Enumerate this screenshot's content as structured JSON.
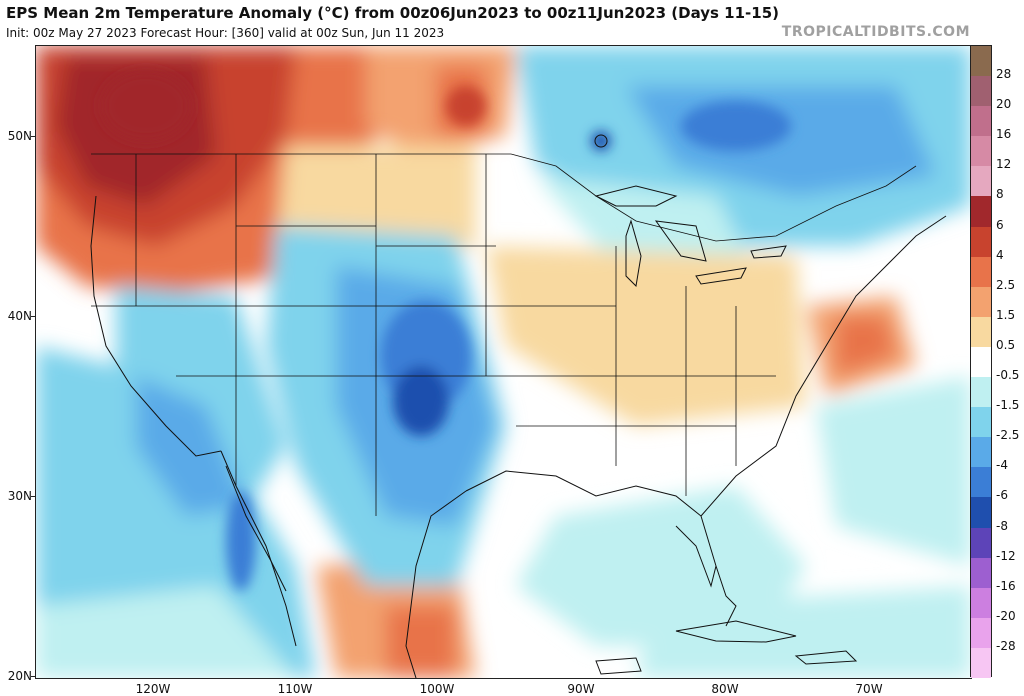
{
  "header": {
    "title": "EPS Mean 2m Temperature Anomaly (°C) from 00z06Jun2023 to 00z11Jun2023 (Days 11-15)",
    "subtitle": "Init: 00z May 27 2023   Forecast Hour: [360]   valid at 00z Sun, Jun 11 2023",
    "credit": "TROPICALTIDBITS.COM"
  },
  "map": {
    "region": "Continental United States",
    "latitude_labels": [
      "50N",
      "40N",
      "30N",
      "20N"
    ],
    "longitude_labels": [
      "120W",
      "110W",
      "100W",
      "90W",
      "80W",
      "70W"
    ]
  },
  "colorbar": {
    "labels": [
      "28",
      "20",
      "16",
      "12",
      "8",
      "6",
      "4",
      "2.5",
      "1.5",
      "0.5",
      "-0.5",
      "-1.5",
      "-2.5",
      "-4",
      "-6",
      "-8",
      "-12",
      "-16",
      "-20",
      "-28"
    ],
    "colors": [
      "#8a6a4e",
      "#a06070",
      "#c06f8c",
      "#d68aa5",
      "#e5a8bf",
      "#a1282c",
      "#c8432e",
      "#e8734a",
      "#f3a26f",
      "#f8d9a0",
      "#ffffff",
      "#bff0f1",
      "#7fd3ec",
      "#5aaae8",
      "#3b7ed6",
      "#1f4fae",
      "#5d44b8",
      "#9d5fd0",
      "#cc7fe0",
      "#e9a3ec",
      "#f7c6f3"
    ]
  }
}
